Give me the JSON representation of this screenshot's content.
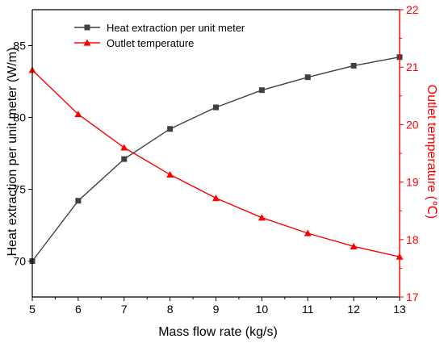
{
  "chart_data": {
    "type": "line",
    "xlabel": "Mass flow rate (kg/s)",
    "ylabel_left": "Heat extraction per unit meter (W/m)",
    "ylabel_right": "Outlet temperature (℃)",
    "x": [
      5,
      6,
      7,
      8,
      9,
      10,
      11,
      12,
      13
    ],
    "xlim": [
      5,
      13
    ],
    "xticks": [
      5,
      6,
      7,
      8,
      9,
      10,
      11,
      12,
      13
    ],
    "ylim_left": [
      67.5,
      87.5
    ],
    "yticks_left": [
      70,
      75,
      80,
      85
    ],
    "ylim_right": [
      17,
      22
    ],
    "yticks_right": [
      17,
      18,
      19,
      20,
      21,
      22
    ],
    "series": [
      {
        "name": "Heat extraction per unit meter",
        "axis": "left",
        "marker": "square",
        "color": "#404040",
        "values": [
          70.0,
          74.2,
          77.1,
          79.2,
          80.7,
          81.9,
          82.8,
          83.6,
          84.2
        ]
      },
      {
        "name": "Outlet temperature",
        "axis": "right",
        "marker": "triangle",
        "color": "#ff0000",
        "values": [
          20.95,
          20.18,
          19.6,
          19.13,
          18.72,
          18.38,
          18.11,
          17.88,
          17.7
        ]
      }
    ],
    "legend_position": "top-left",
    "grid": false
  }
}
